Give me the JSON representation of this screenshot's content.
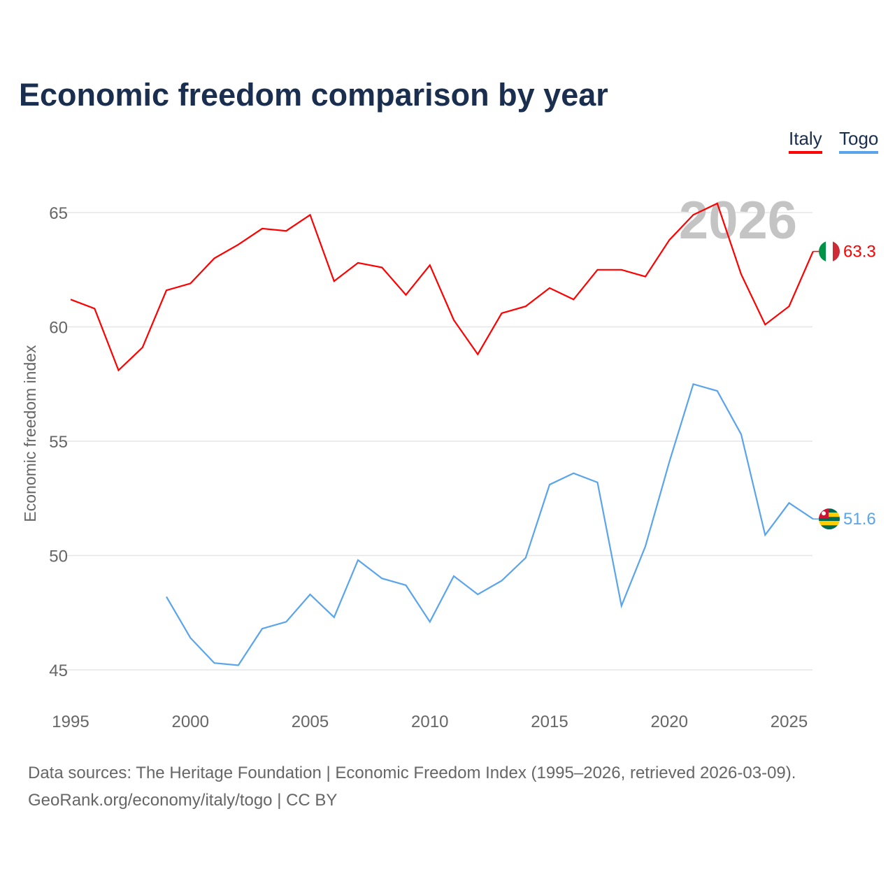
{
  "title": "Economic freedom comparison by year",
  "source_line1": "Data sources: The Heritage Foundation | Economic Freedom Index (1995–2026, retrieved 2026-03-09).",
  "source_line2": "GeoRank.org/economy/italy/togo | CC BY",
  "chart_data": {
    "type": "line",
    "title": "Economic freedom comparison by year",
    "xlabel": "",
    "ylabel": "Economic freedom index",
    "xlim": [
      1995,
      2026
    ],
    "ylim": [
      44,
      67
    ],
    "xticks": [
      1995,
      2000,
      2005,
      2010,
      2015,
      2020,
      2025
    ],
    "yticks": [
      45,
      50,
      55,
      60,
      65
    ],
    "grid": true,
    "legend_position": "top-right",
    "year_watermark": "2026",
    "x": [
      1995,
      1996,
      1997,
      1998,
      1999,
      2000,
      2001,
      2002,
      2003,
      2004,
      2005,
      2006,
      2007,
      2008,
      2009,
      2010,
      2011,
      2012,
      2013,
      2014,
      2015,
      2016,
      2017,
      2018,
      2019,
      2020,
      2021,
      2022,
      2023,
      2024,
      2025,
      2026
    ],
    "series": [
      {
        "name": "Italy",
        "color": "#ff0000",
        "end_label": "63.3",
        "values": [
          61.2,
          60.8,
          58.1,
          59.1,
          61.6,
          61.9,
          63.0,
          63.6,
          64.3,
          64.2,
          64.9,
          62.0,
          62.8,
          62.6,
          61.4,
          62.7,
          60.3,
          58.8,
          60.6,
          60.9,
          61.7,
          61.2,
          62.5,
          62.5,
          62.2,
          63.8,
          64.9,
          65.4,
          62.3,
          60.1,
          60.9,
          63.3
        ]
      },
      {
        "name": "Togo",
        "color": "#5aa4ec",
        "end_label": "51.6",
        "values": [
          null,
          null,
          null,
          null,
          48.2,
          46.4,
          45.3,
          45.2,
          46.8,
          47.1,
          48.3,
          47.3,
          49.8,
          49.0,
          48.7,
          47.1,
          49.1,
          48.3,
          48.9,
          49.9,
          53.1,
          53.6,
          53.2,
          47.8,
          50.4,
          54.1,
          57.5,
          57.2,
          55.3,
          50.9,
          52.3,
          51.6
        ]
      }
    ]
  }
}
